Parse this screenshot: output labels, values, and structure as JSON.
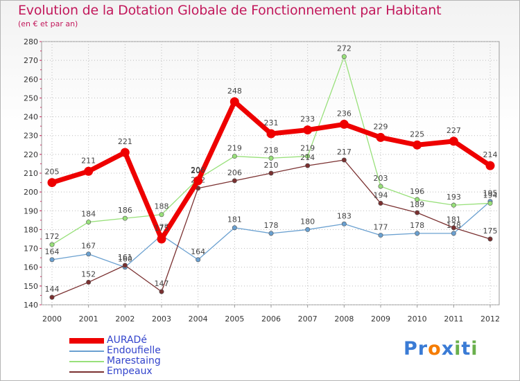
{
  "title": "Evolution de la Dotation Globale de Fonctionnement par Habitant",
  "subtitle": "(en € et par an)",
  "logo": {
    "text": "Proxiti",
    "letters": [
      "P",
      "r",
      "o",
      "x",
      "i",
      "t",
      "i"
    ],
    "colors": [
      "#3a7bd5",
      "#3a7bd5",
      "#f57c00",
      "#3a7bd5",
      "#6ab04c",
      "#3a7bd5",
      "#6ab04c"
    ]
  },
  "chart_data": {
    "type": "line",
    "title": "Evolution de la Dotation Globale de Fonctionnement par Habitant",
    "subtitle": "(en € et par an)",
    "xlabel": "",
    "ylabel": "",
    "categories": [
      "2000",
      "2001",
      "2002",
      "2003",
      "2004",
      "2005",
      "2006",
      "2007",
      "2008",
      "2009",
      "2010",
      "2011",
      "2012"
    ],
    "ylim": [
      140,
      280
    ],
    "yticks": [
      140,
      150,
      160,
      170,
      180,
      190,
      200,
      210,
      220,
      230,
      240,
      250,
      260,
      270,
      280
    ],
    "grid": "horizontal dotted",
    "legend_position": "bottom-left",
    "series": [
      {
        "name": "AURADé",
        "color": "#ee0000",
        "values": [
          205,
          211,
          221,
          175,
          206,
          248,
          231,
          233,
          236,
          229,
          225,
          227,
          214
        ],
        "labels": [
          "205",
          "211",
          "221",
          "175",
          "206",
          "248",
          "231",
          "233",
          "236",
          "229",
          "225",
          "227",
          "214"
        ]
      },
      {
        "name": "Endoufielle",
        "color": "#6aa0d0",
        "values": [
          164,
          167,
          160,
          177,
          164,
          181,
          178,
          180,
          183,
          177,
          178,
          178,
          195
        ],
        "labels": [
          "164",
          "167",
          "160",
          "177",
          "164",
          "181",
          "178",
          "180",
          "183",
          "177",
          "178",
          "178",
          "195"
        ]
      },
      {
        "name": "Marestaing",
        "color": "#98e07a",
        "values": [
          172,
          184,
          186,
          188,
          207,
          219,
          218,
          219,
          272,
          203,
          196,
          193,
          194
        ],
        "labels": [
          "172",
          "184",
          "186",
          "188",
          "207",
          "219",
          "218",
          "219",
          "272",
          "203",
          "196",
          "193",
          "194"
        ]
      },
      {
        "name": "Empeaux",
        "color": "#7a3030",
        "values": [
          144,
          152,
          161,
          147,
          202,
          206,
          210,
          214,
          217,
          194,
          189,
          181,
          175
        ],
        "labels": [
          "144",
          "152",
          "161",
          "147",
          "202",
          "206",
          "210",
          "214",
          "217",
          "194",
          "189",
          "181",
          "175"
        ]
      }
    ]
  }
}
